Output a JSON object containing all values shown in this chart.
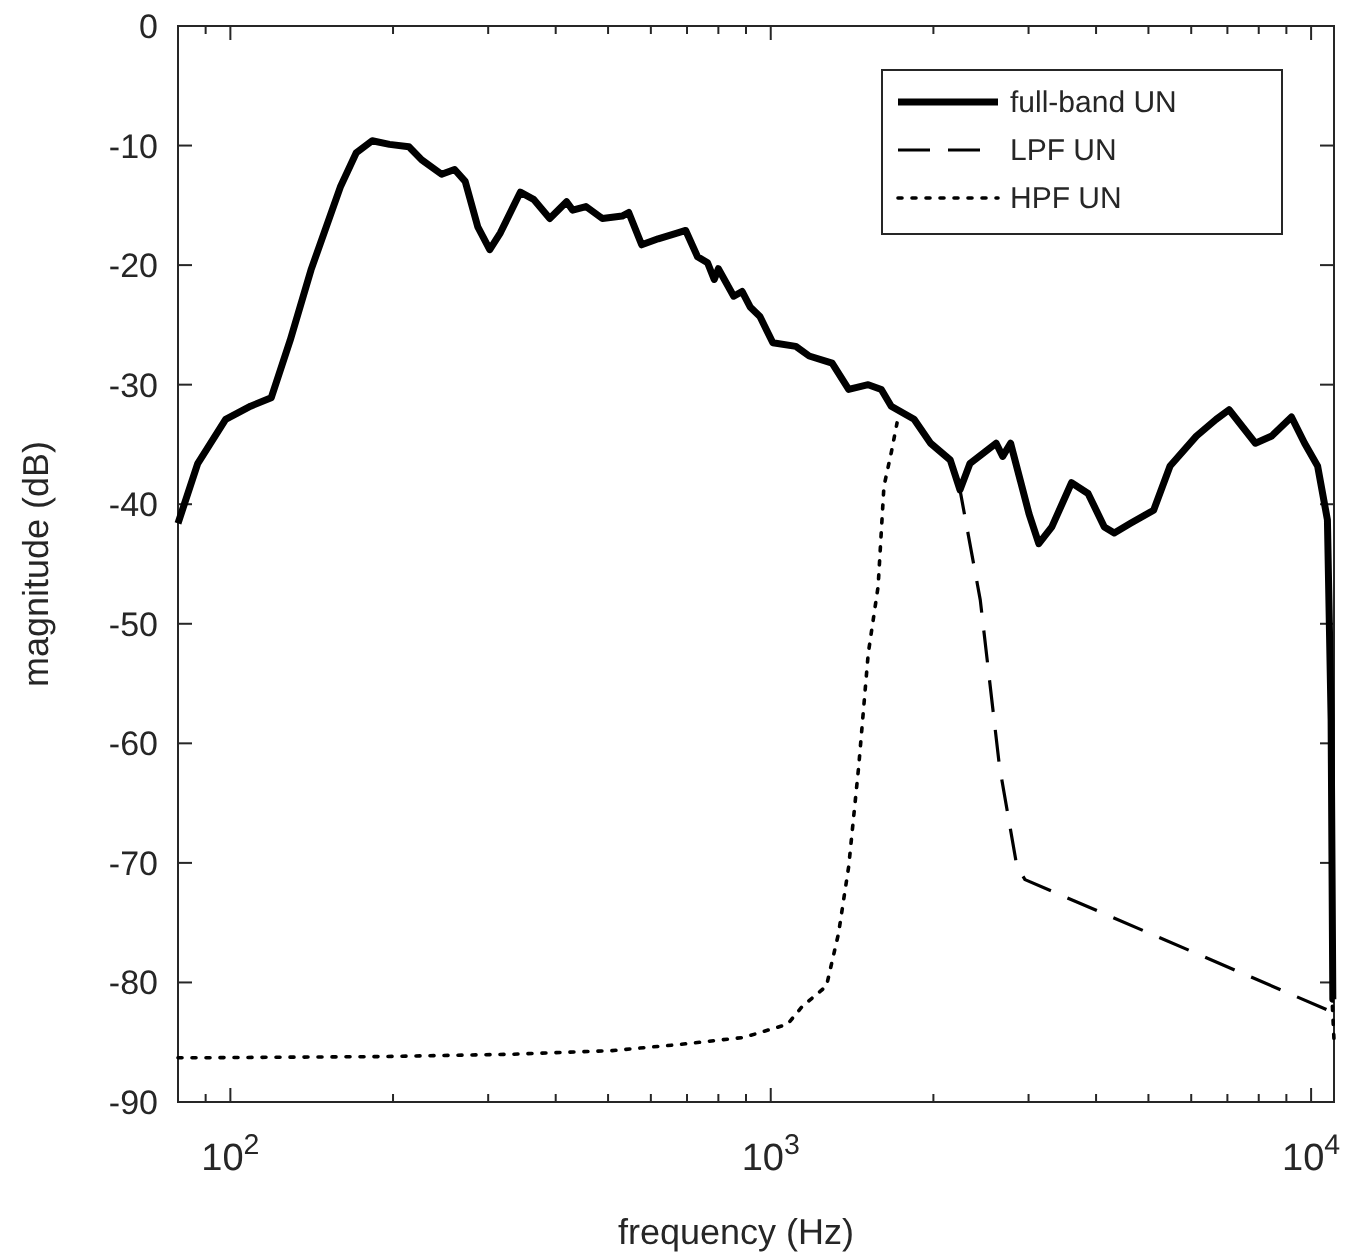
{
  "chart_data": {
    "type": "line",
    "xlabel": "frequency (Hz)",
    "ylabel": "magnitude (dB)",
    "log": "x",
    "xlim": [
      80,
      11025
    ],
    "ylim": [
      -90,
      0
    ],
    "xticks": [
      {
        "value": 90,
        "label": null
      },
      {
        "value": 100,
        "label": "10$^{2}$"
      },
      {
        "value": 200,
        "label": null
      },
      {
        "value": 300,
        "label": null
      },
      {
        "value": 400,
        "label": null
      },
      {
        "value": 500,
        "label": null
      },
      {
        "value": 600,
        "label": null
      },
      {
        "value": 700,
        "label": null
      },
      {
        "value": 800,
        "label": null
      },
      {
        "value": 900,
        "label": null
      },
      {
        "value": 1000,
        "label": "10$^{3}$"
      },
      {
        "value": 2000,
        "label": null
      },
      {
        "value": 3000,
        "label": null
      },
      {
        "value": 4000,
        "label": null
      },
      {
        "value": 5000,
        "label": null
      },
      {
        "value": 6000,
        "label": null
      },
      {
        "value": 7000,
        "label": null
      },
      {
        "value": 8000,
        "label": null
      },
      {
        "value": 9000,
        "label": null
      },
      {
        "value": 10000,
        "label": "10$^{4}$"
      }
    ],
    "yticks": [
      -90,
      -80,
      -70,
      -60,
      -50,
      -40,
      -30,
      -20,
      -10,
      0
    ],
    "grid": false,
    "legend": "top right",
    "series": [
      {
        "name": "full-band UN",
        "color": "#000000",
        "line_style": "solid",
        "x": [
          80,
          87,
          98,
          109,
          119,
          129,
          141,
          160,
          171,
          183,
          197,
          214,
          226,
          246,
          260,
          272,
          287,
          302,
          316,
          344,
          364,
          390,
          419,
          430,
          455,
          488,
          531,
          546,
          577,
          619,
          673,
          696,
          732,
          764,
          786,
          800,
          854,
          885,
          916,
          955,
          1009,
          1113,
          1178,
          1299,
          1394,
          1515,
          1602,
          1671,
          1842,
          1976,
          2149,
          2240,
          2337,
          2613,
          2687,
          2779,
          3006,
          3134,
          3313,
          3603,
          3866,
          4143,
          4322,
          4634,
          5112,
          5483,
          6133,
          6671,
          7051,
          7888,
          8455,
          9198,
          9727,
          10280,
          10720,
          10890,
          10970,
          11025
        ],
        "values": [
          -41.6,
          -36.6,
          -32.9,
          -31.8,
          -31.1,
          -26.3,
          -20.4,
          -13.4,
          -10.6,
          -9.6,
          -9.9,
          -10.1,
          -11.2,
          -12.4,
          -12.0,
          -13.0,
          -16.8,
          -18.7,
          -17.3,
          -13.9,
          -14.5,
          -16.1,
          -14.7,
          -15.4,
          -15.1,
          -16.1,
          -15.9,
          -15.6,
          -18.3,
          -17.8,
          -17.3,
          -17.1,
          -19.3,
          -19.8,
          -21.2,
          -20.3,
          -22.6,
          -22.2,
          -23.5,
          -24.3,
          -26.5,
          -26.8,
          -27.6,
          -28.2,
          -30.4,
          -30.0,
          -30.4,
          -31.8,
          -32.9,
          -34.9,
          -36.3,
          -38.8,
          -36.6,
          -34.9,
          -36.0,
          -34.9,
          -40.8,
          -43.3,
          -41.9,
          -38.2,
          -39.1,
          -41.9,
          -42.4,
          -41.6,
          -40.5,
          -36.8,
          -34.3,
          -32.9,
          -32.1,
          -34.9,
          -34.3,
          -32.7,
          -34.9,
          -36.8,
          -41.3,
          -58,
          -81.4,
          -81.4
        ]
      },
      {
        "name": "LPF UN",
        "color": "#000000",
        "line_style": "dashed",
        "x": [
          1976,
          2149,
          2240,
          2442,
          2650,
          2855,
          2955,
          10720,
          11025
        ],
        "values": [
          -34.9,
          -36.3,
          -38.8,
          -48.0,
          -61.9,
          -70.3,
          -71.4,
          -82.3,
          -82.6
        ]
      },
      {
        "name": "HPF UN",
        "color": "#000000",
        "line_style": "dotted",
        "x": [
          80,
          87,
          191,
          335,
          509,
          673,
          891,
          1074,
          1144,
          1268,
          1335,
          1394,
          1455,
          1515,
          1580,
          1620,
          1671,
          1713,
          10890,
          10950,
          11025
        ],
        "values": [
          -86.3,
          -86.3,
          -86.2,
          -86.0,
          -85.7,
          -85.2,
          -84.6,
          -83.5,
          -82.0,
          -80.3,
          -75.9,
          -70.3,
          -61.9,
          -52.5,
          -46.9,
          -38.5,
          -35.7,
          -33.2,
          null,
          -82.0,
          -84.8
        ]
      }
    ]
  }
}
